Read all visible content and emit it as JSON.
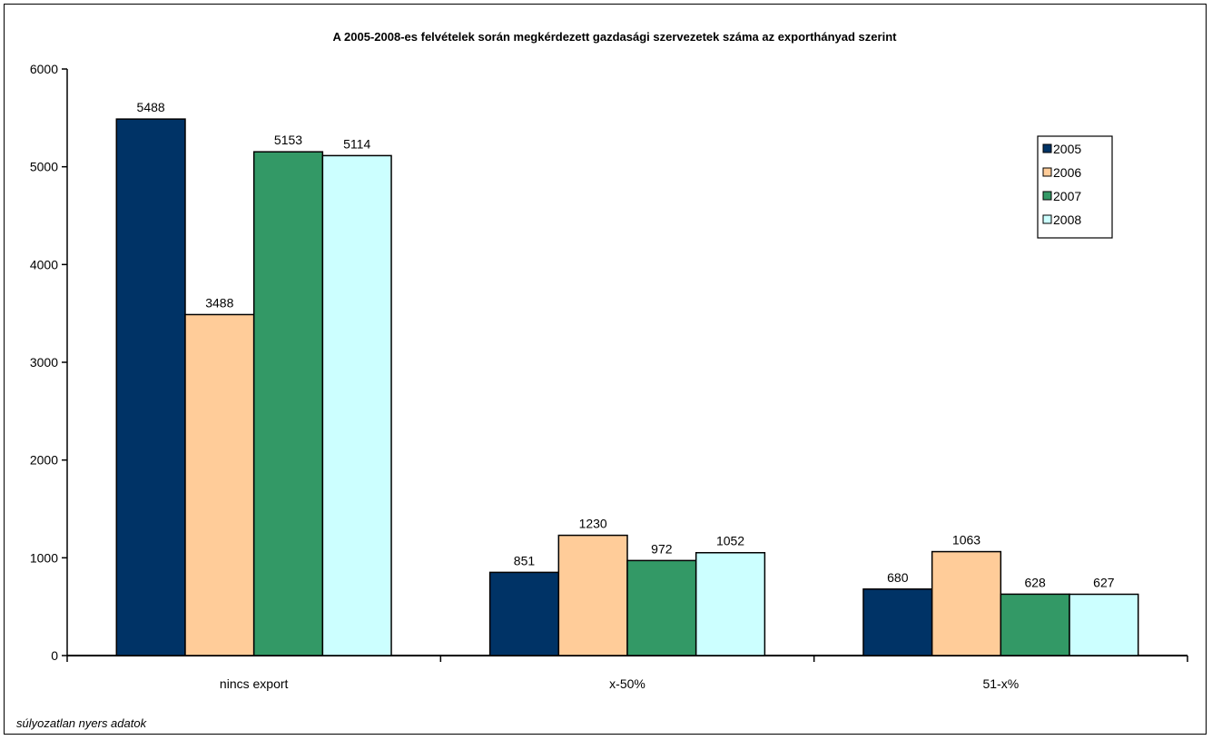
{
  "footnote": "súlyozatlan nyers adatok",
  "chart_data": {
    "type": "bar",
    "title": "A 2005-2008-es  felvételek  során  megkérdezett  gazdasági  szervezetek  száma  az  exporthányad  szerint",
    "xlabel": "",
    "ylabel": "",
    "categories": [
      "nincs export",
      "x-50%",
      "51-x%"
    ],
    "series": [
      {
        "name": "2005",
        "color": "#003366",
        "values": [
          5488,
          851,
          680
        ]
      },
      {
        "name": "2006",
        "color": "#FFCC99",
        "values": [
          3488,
          1230,
          1063
        ]
      },
      {
        "name": "2007",
        "color": "#339966",
        "values": [
          5153,
          972,
          628
        ]
      },
      {
        "name": "2008",
        "color": "#CCFFFF",
        "values": [
          5114,
          1052,
          627
        ]
      }
    ],
    "ylim": [
      0,
      6000
    ],
    "yticks": [
      0,
      1000,
      2000,
      3000,
      4000,
      5000,
      6000
    ],
    "grid": false,
    "legend_position": "top-right",
    "data_labels": true
  }
}
